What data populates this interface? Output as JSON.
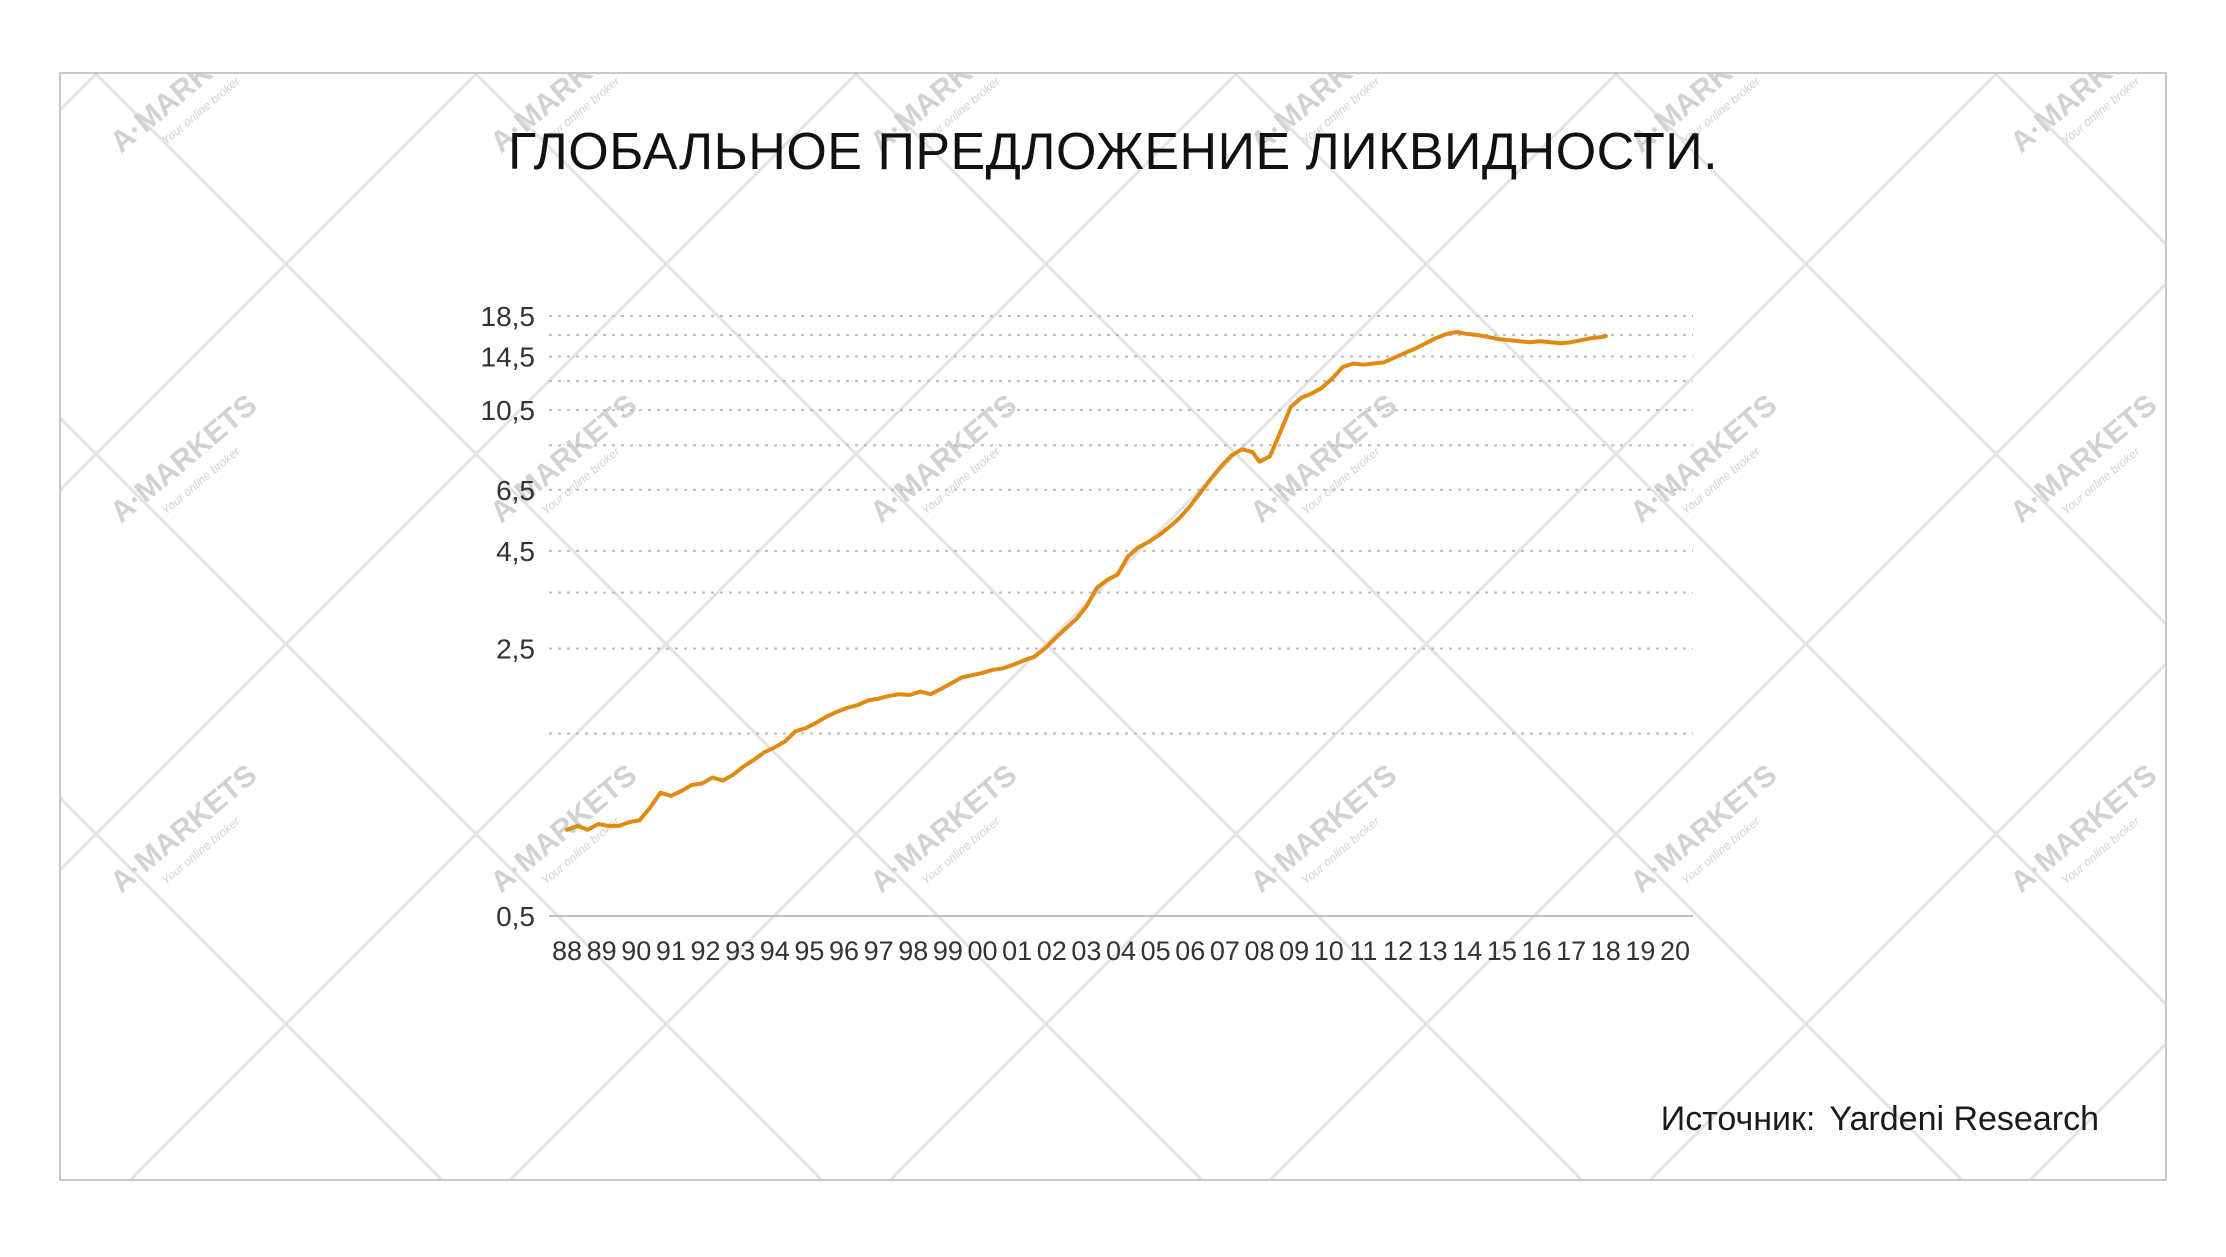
{
  "title": "ГЛОБАЛЬНОЕ ПРЕДЛОЖЕНИЕ ЛИКВИДНОСТИ.",
  "source": {
    "label": "Источник:",
    "value": "Yardeni Research"
  },
  "watermark": {
    "brand": "A·MARKETS",
    "tagline": "Your online broker"
  },
  "chart_data": {
    "type": "line",
    "title": "ГЛОБАЛЬНОЕ ПРЕДЛОЖЕНИЕ ЛИКВИДНОСТИ.",
    "xlabel": "",
    "ylabel": "",
    "y_scale": "log",
    "ylim": [
      0.5,
      18.5
    ],
    "y_tick_labels": [
      "0,5",
      "2,5",
      "4,5",
      "6,5",
      "10,5",
      "14,5",
      "18,5"
    ],
    "y_ticks": [
      0.5,
      2.5,
      4.5,
      6.5,
      10.5,
      14.5,
      18.5
    ],
    "gridlines": [
      1.5,
      2.5,
      3.5,
      4.5,
      6.5,
      8.5,
      10.5,
      12.5,
      14.5,
      16.5,
      18.5
    ],
    "grid": true,
    "grid_style": "dotted-horizontal",
    "legend": "none",
    "x_tick_labels": [
      "88",
      "89",
      "90",
      "91",
      "92",
      "93",
      "94",
      "95",
      "96",
      "97",
      "98",
      "99",
      "00",
      "01",
      "02",
      "03",
      "04",
      "05",
      "06",
      "07",
      "08",
      "09",
      "10",
      "11",
      "12",
      "13",
      "14",
      "15",
      "16",
      "17",
      "18",
      "19",
      "20"
    ],
    "xlim": [
      1988,
      2020
    ],
    "series": [
      {
        "color": "#e08a12",
        "x": [
          1988.0,
          1988.3,
          1988.6,
          1988.9,
          1989.2,
          1989.5,
          1989.8,
          1990.1,
          1990.4,
          1990.7,
          1991.0,
          1991.3,
          1991.6,
          1991.9,
          1992.2,
          1992.5,
          1992.8,
          1993.1,
          1993.4,
          1993.7,
          1994.0,
          1994.3,
          1994.6,
          1994.9,
          1995.2,
          1995.5,
          1995.8,
          1996.1,
          1996.4,
          1996.7,
          1997.0,
          1997.3,
          1997.6,
          1997.9,
          1998.2,
          1998.5,
          1998.8,
          1999.1,
          1999.4,
          1999.7,
          2000.0,
          2000.3,
          2000.6,
          2000.9,
          2001.2,
          2001.5,
          2001.8,
          2002.1,
          2002.4,
          2002.7,
          2003.0,
          2003.3,
          2003.6,
          2003.9,
          2004.2,
          2004.5,
          2004.8,
          2005.1,
          2005.4,
          2005.7,
          2006.0,
          2006.3,
          2006.6,
          2006.9,
          2007.2,
          2007.5,
          2007.8,
          2008.0,
          2008.3,
          2008.6,
          2008.9,
          2009.2,
          2009.5,
          2009.8,
          2010.1,
          2010.4,
          2010.7,
          2011.0,
          2011.3,
          2011.6,
          2011.9,
          2012.2,
          2012.5,
          2012.8,
          2013.1,
          2013.4,
          2013.7,
          2014.0,
          2014.3,
          2014.6,
          2014.9,
          2015.2,
          2015.5,
          2015.8,
          2016.1,
          2016.4,
          2016.7,
          2017.0,
          2017.3,
          2017.6,
          2017.9,
          2018.0
        ],
        "values": [
          0.84,
          0.86,
          0.84,
          0.87,
          0.86,
          0.86,
          0.88,
          0.89,
          0.96,
          1.05,
          1.03,
          1.06,
          1.1,
          1.11,
          1.15,
          1.13,
          1.17,
          1.23,
          1.28,
          1.34,
          1.38,
          1.43,
          1.52,
          1.55,
          1.6,
          1.66,
          1.71,
          1.75,
          1.78,
          1.83,
          1.85,
          1.88,
          1.9,
          1.89,
          1.93,
          1.9,
          1.96,
          2.03,
          2.1,
          2.13,
          2.16,
          2.2,
          2.22,
          2.27,
          2.33,
          2.38,
          2.5,
          2.66,
          2.82,
          2.98,
          3.22,
          3.6,
          3.78,
          3.9,
          4.35,
          4.6,
          4.75,
          4.95,
          5.2,
          5.5,
          5.9,
          6.4,
          6.95,
          7.5,
          8.0,
          8.3,
          8.15,
          7.7,
          7.95,
          9.2,
          10.7,
          11.3,
          11.6,
          12.0,
          12.7,
          13.6,
          13.9,
          13.8,
          13.9,
          14.0,
          14.4,
          14.8,
          15.2,
          15.7,
          16.2,
          16.6,
          16.8,
          16.6,
          16.5,
          16.3,
          16.1,
          16.0,
          15.9,
          15.8,
          15.9,
          15.8,
          15.7,
          15.8,
          16.0,
          16.2,
          16.3,
          16.4
        ]
      }
    ]
  }
}
